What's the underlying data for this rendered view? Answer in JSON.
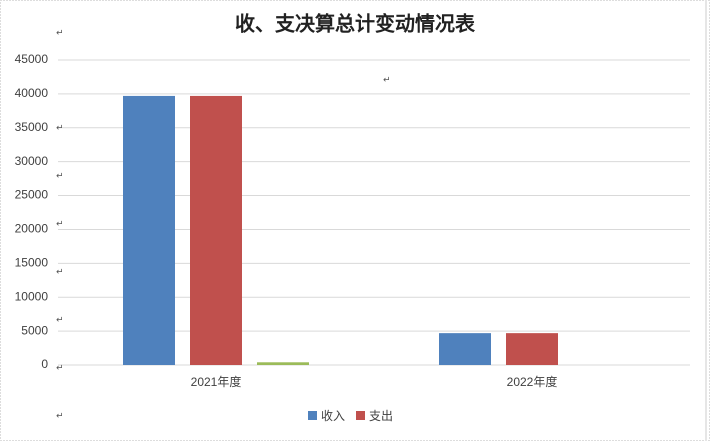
{
  "chart_data": {
    "type": "bar",
    "title": "收、支决算总计变动情况表",
    "categories": [
      "2021年度",
      "2022年度"
    ],
    "series": [
      {
        "name": "收入",
        "color": "#4f81bd",
        "values": [
          39700,
          4700
        ]
      },
      {
        "name": "支出",
        "color": "#c0504d",
        "values": [
          39700,
          4700
        ]
      },
      {
        "color": "#9bbb59",
        "values": [
          400,
          null
        ]
      }
    ],
    "ylim": [
      0,
      45000
    ],
    "yticks": [
      0,
      5000,
      10000,
      15000,
      20000,
      25000,
      30000,
      35000,
      40000,
      45000
    ],
    "grid": true,
    "legend": "bottom",
    "annotations": [
      "↵",
      "↵",
      "↵",
      "↵",
      "↵",
      "↵",
      "↵",
      "↵",
      "↵"
    ]
  }
}
